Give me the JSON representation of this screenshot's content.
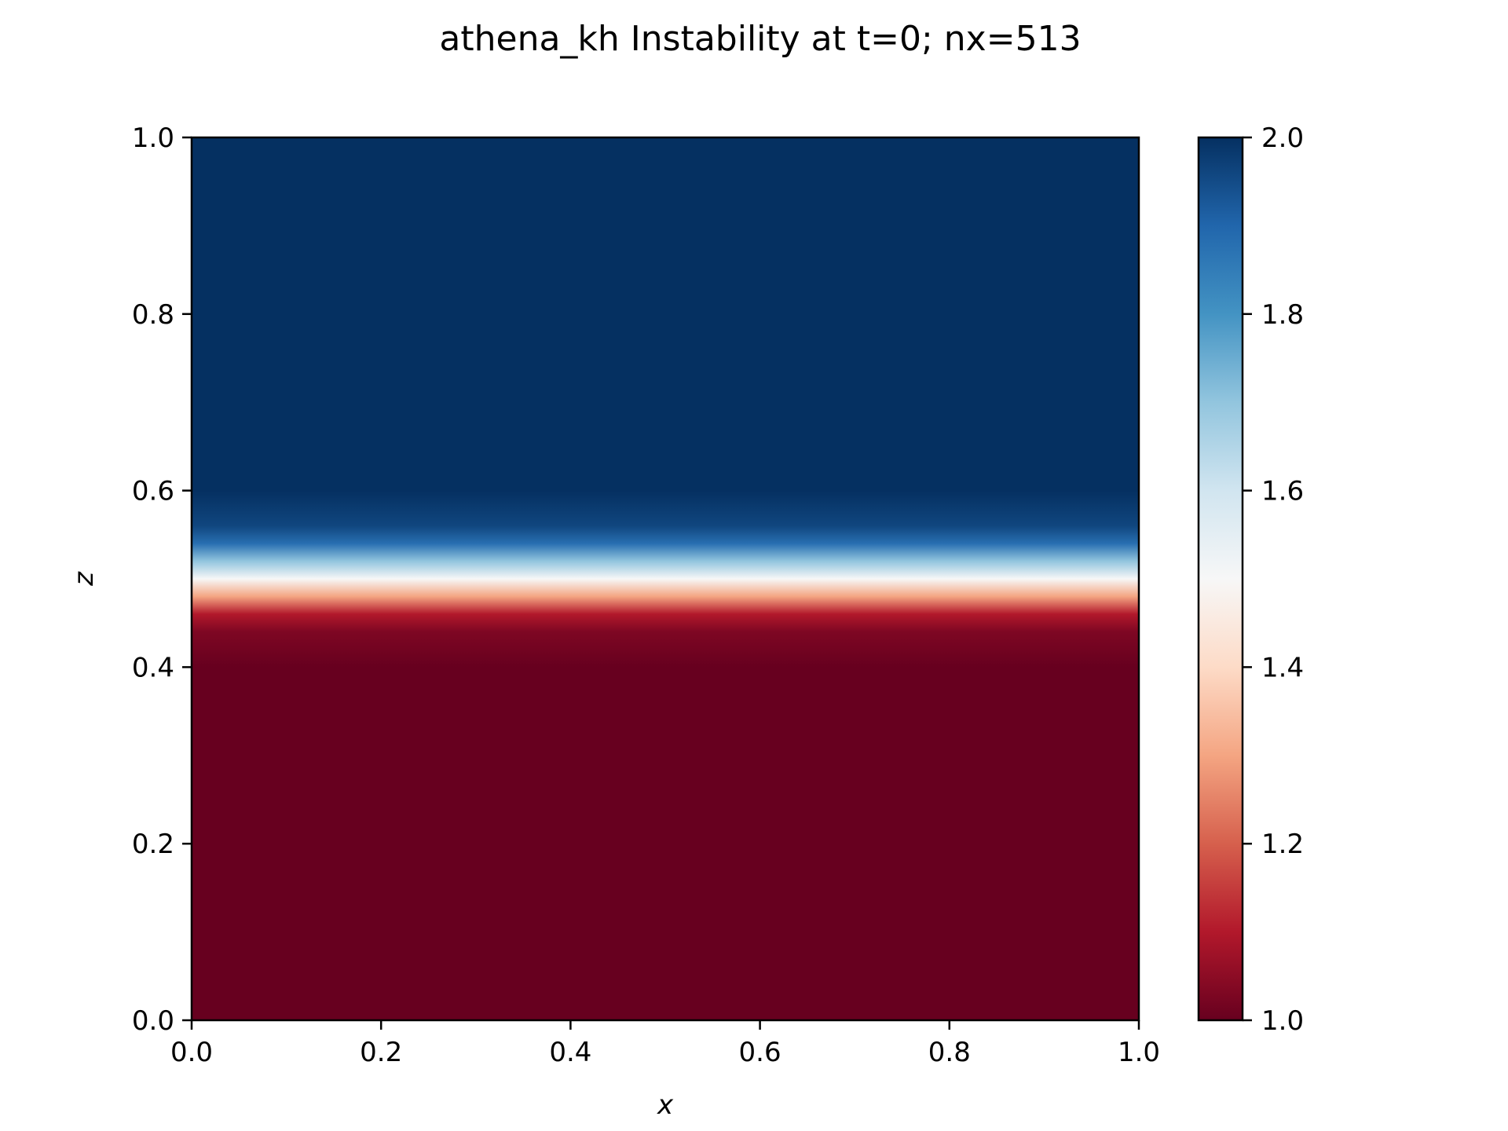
{
  "chart_data": {
    "type": "heatmap",
    "title": "athena_kh Instability at t=0; nx=513",
    "xlabel": "x",
    "ylabel": "z",
    "xlim": [
      0.0,
      1.0
    ],
    "ylim": [
      0.0,
      1.0
    ],
    "x_ticks": [
      "0.0",
      "0.2",
      "0.4",
      "0.6",
      "0.8",
      "1.0"
    ],
    "y_ticks": [
      "0.0",
      "0.2",
      "0.4",
      "0.6",
      "0.8",
      "1.0"
    ],
    "grid": false,
    "colormap": "RdBu",
    "field_profile": {
      "description": "value varies with z only; uniform in x",
      "z": [
        0.0,
        0.4,
        0.44,
        0.46,
        0.48,
        0.5,
        0.52,
        0.54,
        0.56,
        0.6,
        1.0
      ],
      "value": [
        1.0,
        1.0,
        1.03,
        1.1,
        1.3,
        1.5,
        1.7,
        1.88,
        1.96,
        2.0,
        2.0
      ]
    },
    "colorbar": {
      "range": [
        1.0,
        2.0
      ],
      "ticks": [
        "1.0",
        "1.2",
        "1.4",
        "1.6",
        "1.8",
        "2.0"
      ],
      "colors": [
        "#67001f",
        "#b2182b",
        "#d6604d",
        "#f4a582",
        "#fddbc7",
        "#f7f7f7",
        "#d1e5f0",
        "#92c5de",
        "#4393c3",
        "#2166ac",
        "#053061"
      ]
    }
  }
}
